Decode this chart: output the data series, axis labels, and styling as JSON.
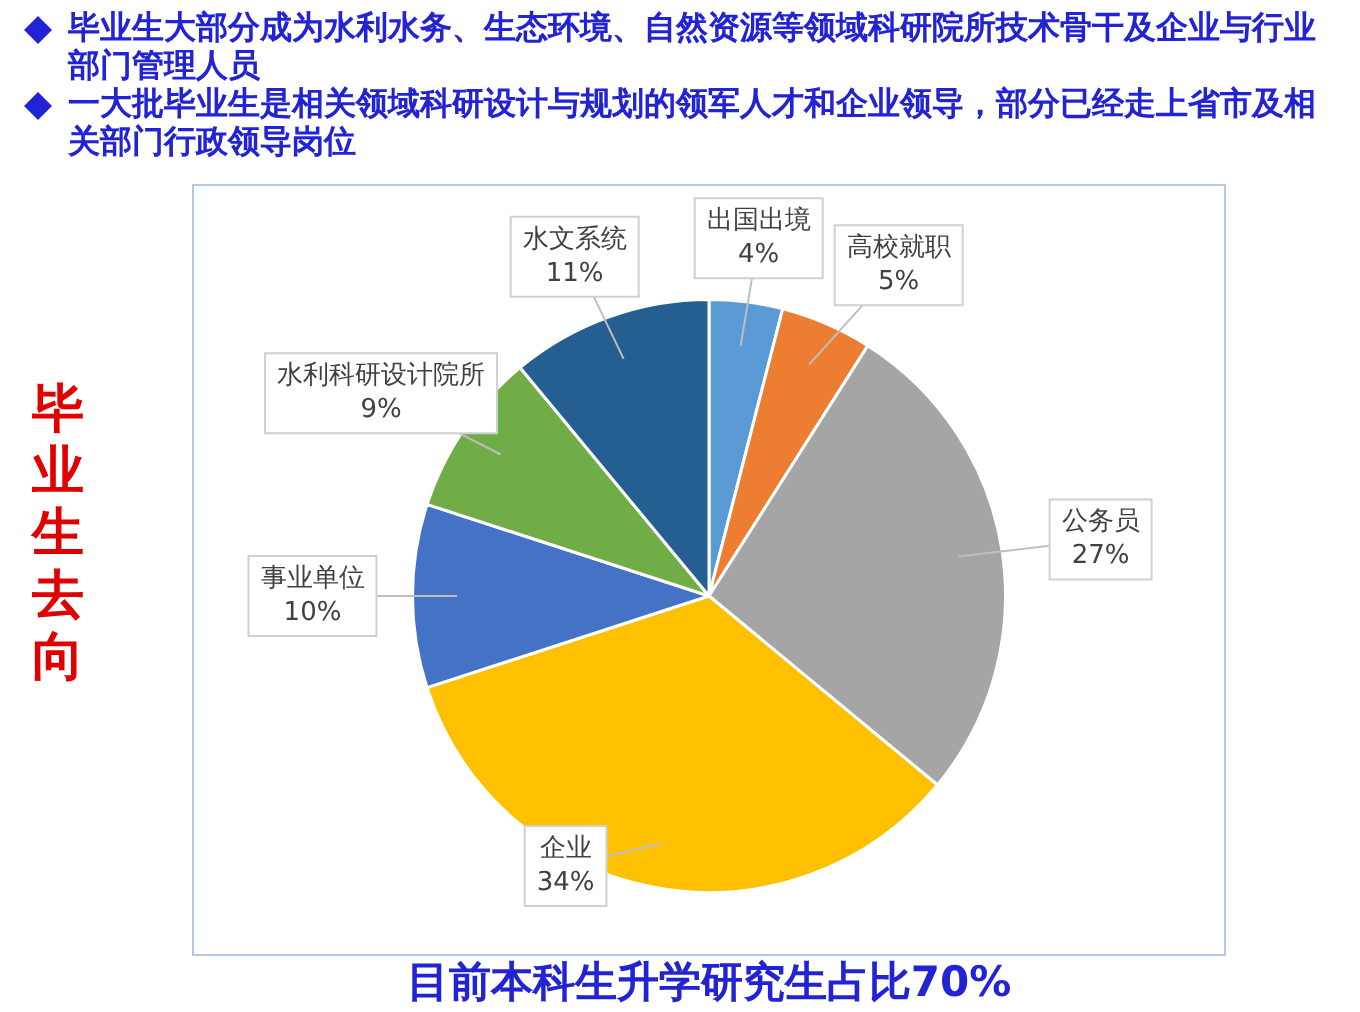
{
  "chart_data": {
    "type": "pie",
    "title": "毕业生大部分成为水利水务、生态环境、自然资源等领域科研院所技术骨干及企业与行业部门管理人员",
    "subtitle": "一大批毕业生是相关领域科研设计与规划的领军人才和企业领导，部分已经走上省市及相关部门行政领导岗位",
    "ylabel": "毕业生去向",
    "annotations": [
      "目前本科生升学研究生占比70%"
    ],
    "categories": [
      "出国出境",
      "高校就职",
      "公务员",
      "企业",
      "事业单位",
      "水利科研设计院所",
      "水文系统"
    ],
    "values": [
      4,
      5,
      27,
      34,
      10,
      9,
      11
    ],
    "colors": [
      "#5b9bd5",
      "#ed7d31",
      "#a5a5a5",
      "#ffc000",
      "#4472c4",
      "#70ad47",
      "#255e91"
    ],
    "value_labels": [
      "4%",
      "5%",
      "27%",
      "34%",
      "10%",
      "9%",
      "11%"
    ]
  }
}
